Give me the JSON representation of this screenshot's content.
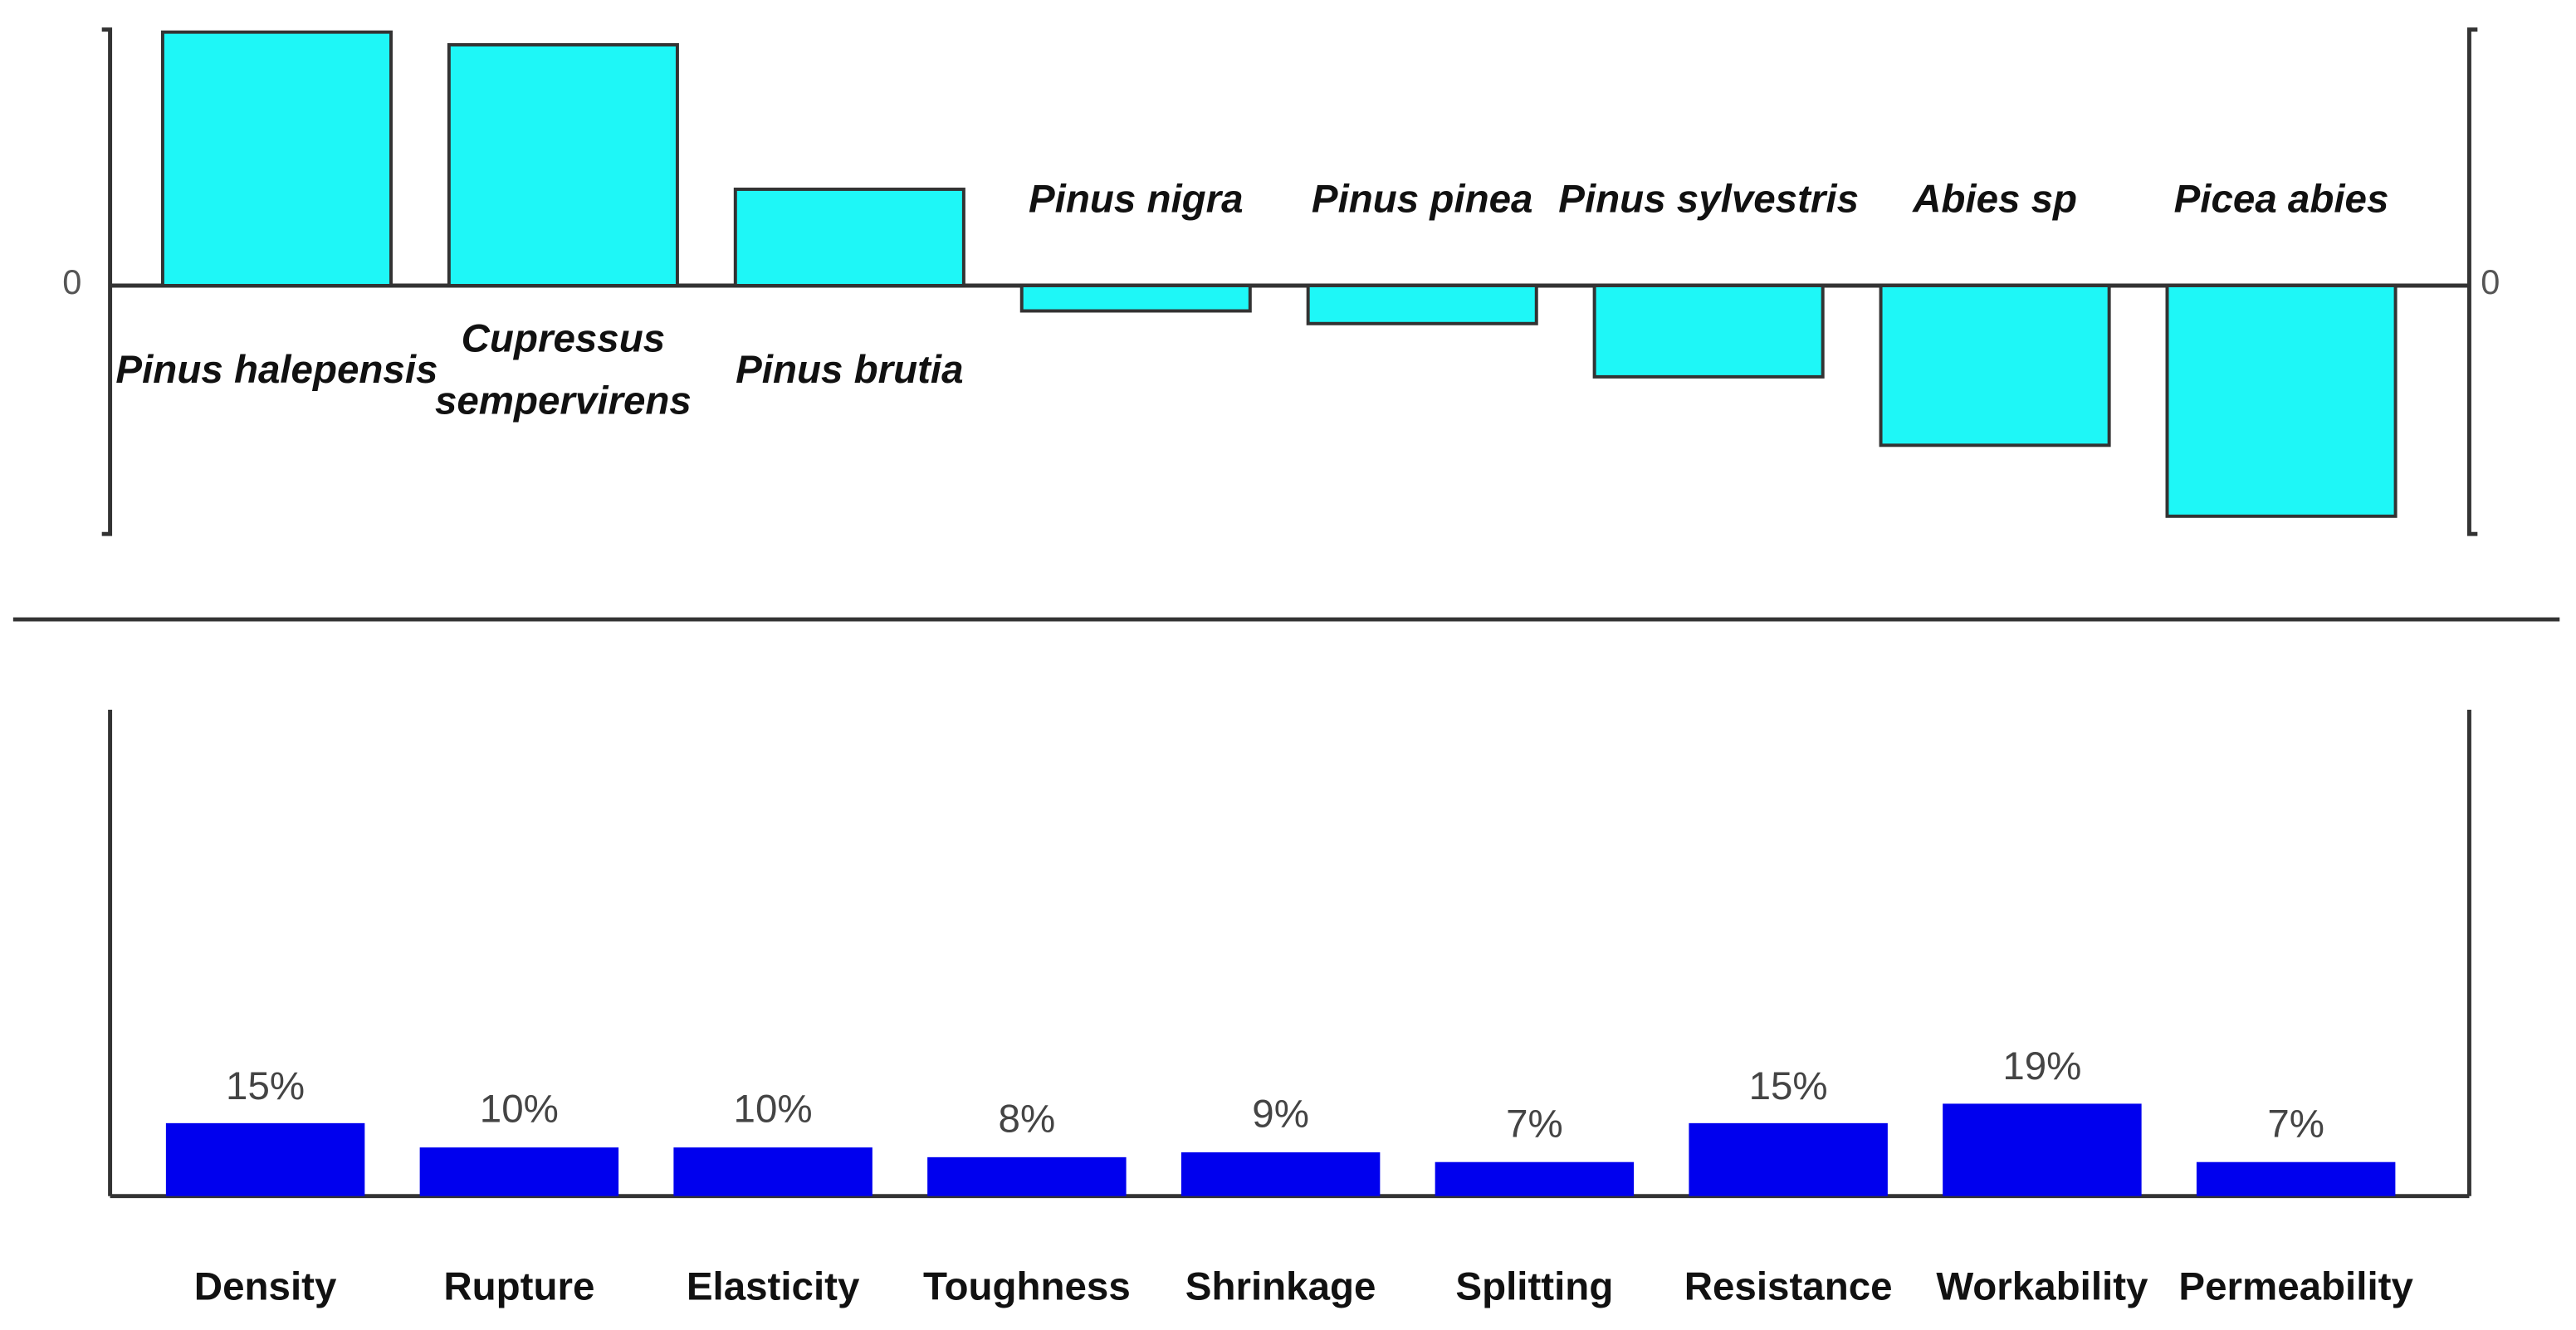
{
  "chart_data": [
    {
      "type": "bar",
      "categories": [
        "Pinus halepensis",
        "Cupressus sempervirens",
        "Pinus brutia",
        "Pinus nigra",
        "Pinus pinea",
        "Pinus sylvestris",
        "Abies sp",
        "Picea abies"
      ],
      "values": [
        100,
        95,
        38,
        -10,
        -15,
        -36,
        -63,
        -91
      ],
      "color": "#1ef7f7",
      "ylim": [
        -98,
        101
      ],
      "yticks": [
        0
      ]
    },
    {
      "type": "bar",
      "categories": [
        "Density",
        "Rupture",
        "Elasticity",
        "Toughness",
        "Shrinkage",
        "Splitting",
        "Resistance",
        "Workability",
        "Permeability"
      ],
      "values": [
        15,
        10,
        10,
        8,
        9,
        7,
        15,
        19,
        7
      ],
      "value_labels": [
        "15%",
        "10%",
        "10%",
        "8%",
        "9%",
        "7%",
        "15%",
        "19%",
        "7%"
      ],
      "color": "#0000ee",
      "ylim": [
        0,
        100
      ]
    }
  ]
}
